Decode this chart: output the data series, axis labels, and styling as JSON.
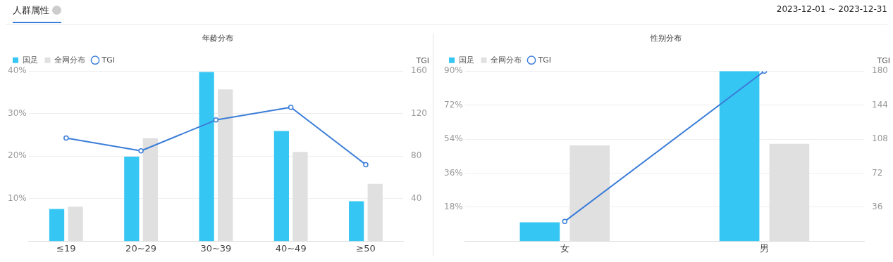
{
  "chart_data": [
    {
      "type": "bar",
      "title": "年龄分布",
      "y2label": "TGI",
      "annotations": [
        "人群属性",
        "2023-12-01 ~ 2023-12-31"
      ],
      "categories": [
        "≤19",
        "20~29",
        "30~39",
        "40~49",
        "≥50"
      ],
      "series": [
        {
          "name": "国足",
          "color": "#36c6f4",
          "values": [
            7.6,
            19.9,
            39.8,
            25.9,
            9.4
          ]
        },
        {
          "name": "全网分布",
          "color": "#e0e0e0",
          "values": [
            8.1,
            24.2,
            35.7,
            21.0,
            13.5
          ]
        },
        {
          "name": "TGI",
          "type": "line",
          "axis": "y2",
          "color": "#3b7dd8",
          "marker": "circle",
          "values": [
            97,
            85,
            114,
            126,
            72
          ]
        }
      ],
      "ylim": [
        0,
        40
      ],
      "yticks": [
        {
          "value": 10,
          "label": "10%"
        },
        {
          "value": 20,
          "label": "20%"
        },
        {
          "value": 30,
          "label": "30%"
        },
        {
          "value": 40,
          "label": "40%"
        }
      ],
      "y2lim": [
        0,
        160
      ],
      "y2ticks": [
        40,
        80,
        120,
        160
      ],
      "grid": "y",
      "legend": "top left"
    },
    {
      "type": "bar",
      "title": "性别分布",
      "y2label": "TGI",
      "categories": [
        "女",
        "男"
      ],
      "series": [
        {
          "name": "国足",
          "color": "#36c6f4",
          "values": [
            10,
            90
          ]
        },
        {
          "name": "全网分布",
          "color": "#e0e0e0",
          "values": [
            50.7,
            51.5
          ]
        },
        {
          "name": "TGI",
          "type": "line",
          "axis": "y2",
          "color": "#3b7dd8",
          "marker": "circle",
          "values": [
            21,
            180
          ]
        }
      ],
      "ylim": [
        0,
        90
      ],
      "yticks": [
        {
          "value": 18,
          "label": "18%"
        },
        {
          "value": 36,
          "label": "36%"
        },
        {
          "value": 54,
          "label": "54%"
        },
        {
          "value": 72,
          "label": "72%"
        },
        {
          "value": 90,
          "label": "90%"
        }
      ],
      "y2lim": [
        0,
        180
      ],
      "y2ticks": [
        36,
        72,
        108,
        144,
        180
      ],
      "grid": "y",
      "legend": "top left"
    }
  ]
}
